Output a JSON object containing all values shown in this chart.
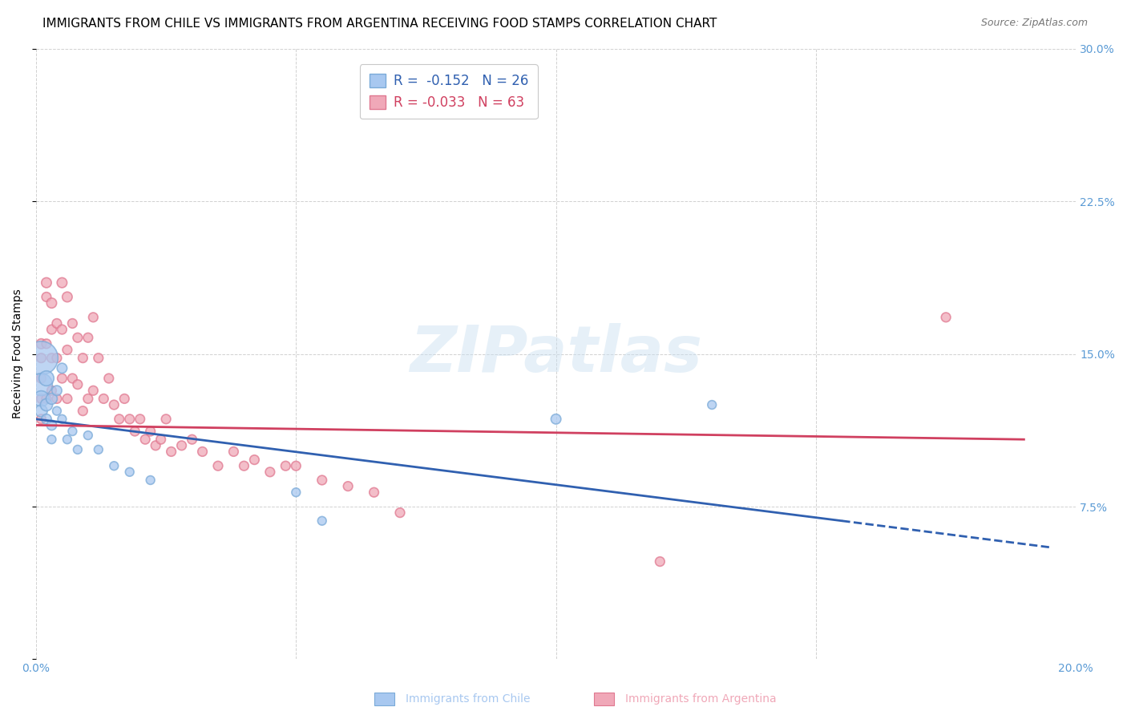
{
  "title": "IMMIGRANTS FROM CHILE VS IMMIGRANTS FROM ARGENTINA RECEIVING FOOD STAMPS CORRELATION CHART",
  "source": "Source: ZipAtlas.com",
  "ylabel": "Receiving Food Stamps",
  "watermark": "ZIPatlas",
  "legend_chile": {
    "R": -0.152,
    "N": 26,
    "label": "Immigrants from Chile"
  },
  "legend_arg": {
    "R": -0.033,
    "N": 63,
    "label": "Immigrants from Argentina"
  },
  "xlim": [
    0.0,
    0.2
  ],
  "ylim": [
    0.0,
    0.3
  ],
  "chile_color": "#a8c8f0",
  "arg_color": "#f0a8b8",
  "chile_edge_color": "#7aaad8",
  "arg_edge_color": "#e07890",
  "chile_line_color": "#3060b0",
  "arg_line_color": "#d04060",
  "background_color": "#ffffff",
  "grid_color": "#cccccc",
  "title_fontsize": 11,
  "axis_label_fontsize": 10,
  "tick_fontsize": 10,
  "right_tick_color": "#5b9bd5",
  "bottom_tick_color": "#5b9bd5",
  "chile_line_start_x": 0.0,
  "chile_line_start_y": 0.118,
  "chile_line_end_x": 0.155,
  "chile_line_end_y": 0.068,
  "chile_line_dash_end_x": 0.195,
  "chile_line_dash_end_y": 0.055,
  "arg_line_start_x": 0.0,
  "arg_line_start_y": 0.115,
  "arg_line_end_x": 0.19,
  "arg_line_end_y": 0.108,
  "chile_x": [
    0.001,
    0.001,
    0.001,
    0.001,
    0.002,
    0.002,
    0.002,
    0.003,
    0.003,
    0.003,
    0.004,
    0.004,
    0.005,
    0.005,
    0.006,
    0.007,
    0.008,
    0.01,
    0.012,
    0.015,
    0.018,
    0.022,
    0.05,
    0.055,
    0.1,
    0.13
  ],
  "chile_y": [
    0.148,
    0.135,
    0.128,
    0.122,
    0.138,
    0.125,
    0.118,
    0.128,
    0.115,
    0.108,
    0.132,
    0.122,
    0.143,
    0.118,
    0.108,
    0.112,
    0.103,
    0.11,
    0.103,
    0.095,
    0.092,
    0.088,
    0.082,
    0.068,
    0.118,
    0.125
  ],
  "chile_sizes": [
    900,
    400,
    200,
    120,
    180,
    120,
    80,
    100,
    80,
    60,
    80,
    60,
    80,
    60,
    60,
    60,
    60,
    60,
    60,
    60,
    60,
    60,
    60,
    60,
    80,
    60
  ],
  "arg_x": [
    0.001,
    0.001,
    0.001,
    0.001,
    0.001,
    0.002,
    0.002,
    0.002,
    0.002,
    0.003,
    0.003,
    0.003,
    0.003,
    0.004,
    0.004,
    0.004,
    0.005,
    0.005,
    0.005,
    0.006,
    0.006,
    0.006,
    0.007,
    0.007,
    0.008,
    0.008,
    0.009,
    0.009,
    0.01,
    0.01,
    0.011,
    0.011,
    0.012,
    0.013,
    0.014,
    0.015,
    0.016,
    0.017,
    0.018,
    0.019,
    0.02,
    0.021,
    0.022,
    0.023,
    0.024,
    0.025,
    0.026,
    0.028,
    0.03,
    0.032,
    0.035,
    0.038,
    0.04,
    0.042,
    0.045,
    0.048,
    0.05,
    0.055,
    0.06,
    0.065,
    0.07,
    0.12,
    0.175
  ],
  "arg_y": [
    0.155,
    0.148,
    0.138,
    0.128,
    0.118,
    0.185,
    0.178,
    0.155,
    0.128,
    0.175,
    0.162,
    0.148,
    0.132,
    0.165,
    0.148,
    0.128,
    0.185,
    0.162,
    0.138,
    0.178,
    0.152,
    0.128,
    0.165,
    0.138,
    0.158,
    0.135,
    0.148,
    0.122,
    0.158,
    0.128,
    0.168,
    0.132,
    0.148,
    0.128,
    0.138,
    0.125,
    0.118,
    0.128,
    0.118,
    0.112,
    0.118,
    0.108,
    0.112,
    0.105,
    0.108,
    0.118,
    0.102,
    0.105,
    0.108,
    0.102,
    0.095,
    0.102,
    0.095,
    0.098,
    0.092,
    0.095,
    0.095,
    0.088,
    0.085,
    0.082,
    0.072,
    0.048,
    0.168
  ],
  "arg_sizes": [
    80,
    70,
    70,
    70,
    70,
    80,
    70,
    70,
    70,
    80,
    70,
    70,
    70,
    70,
    70,
    70,
    80,
    70,
    70,
    80,
    70,
    70,
    70,
    70,
    70,
    70,
    70,
    70,
    70,
    70,
    70,
    70,
    70,
    70,
    70,
    70,
    70,
    70,
    70,
    70,
    70,
    70,
    70,
    70,
    70,
    70,
    70,
    70,
    70,
    70,
    70,
    70,
    70,
    70,
    70,
    70,
    70,
    70,
    70,
    70,
    70,
    70,
    70
  ]
}
